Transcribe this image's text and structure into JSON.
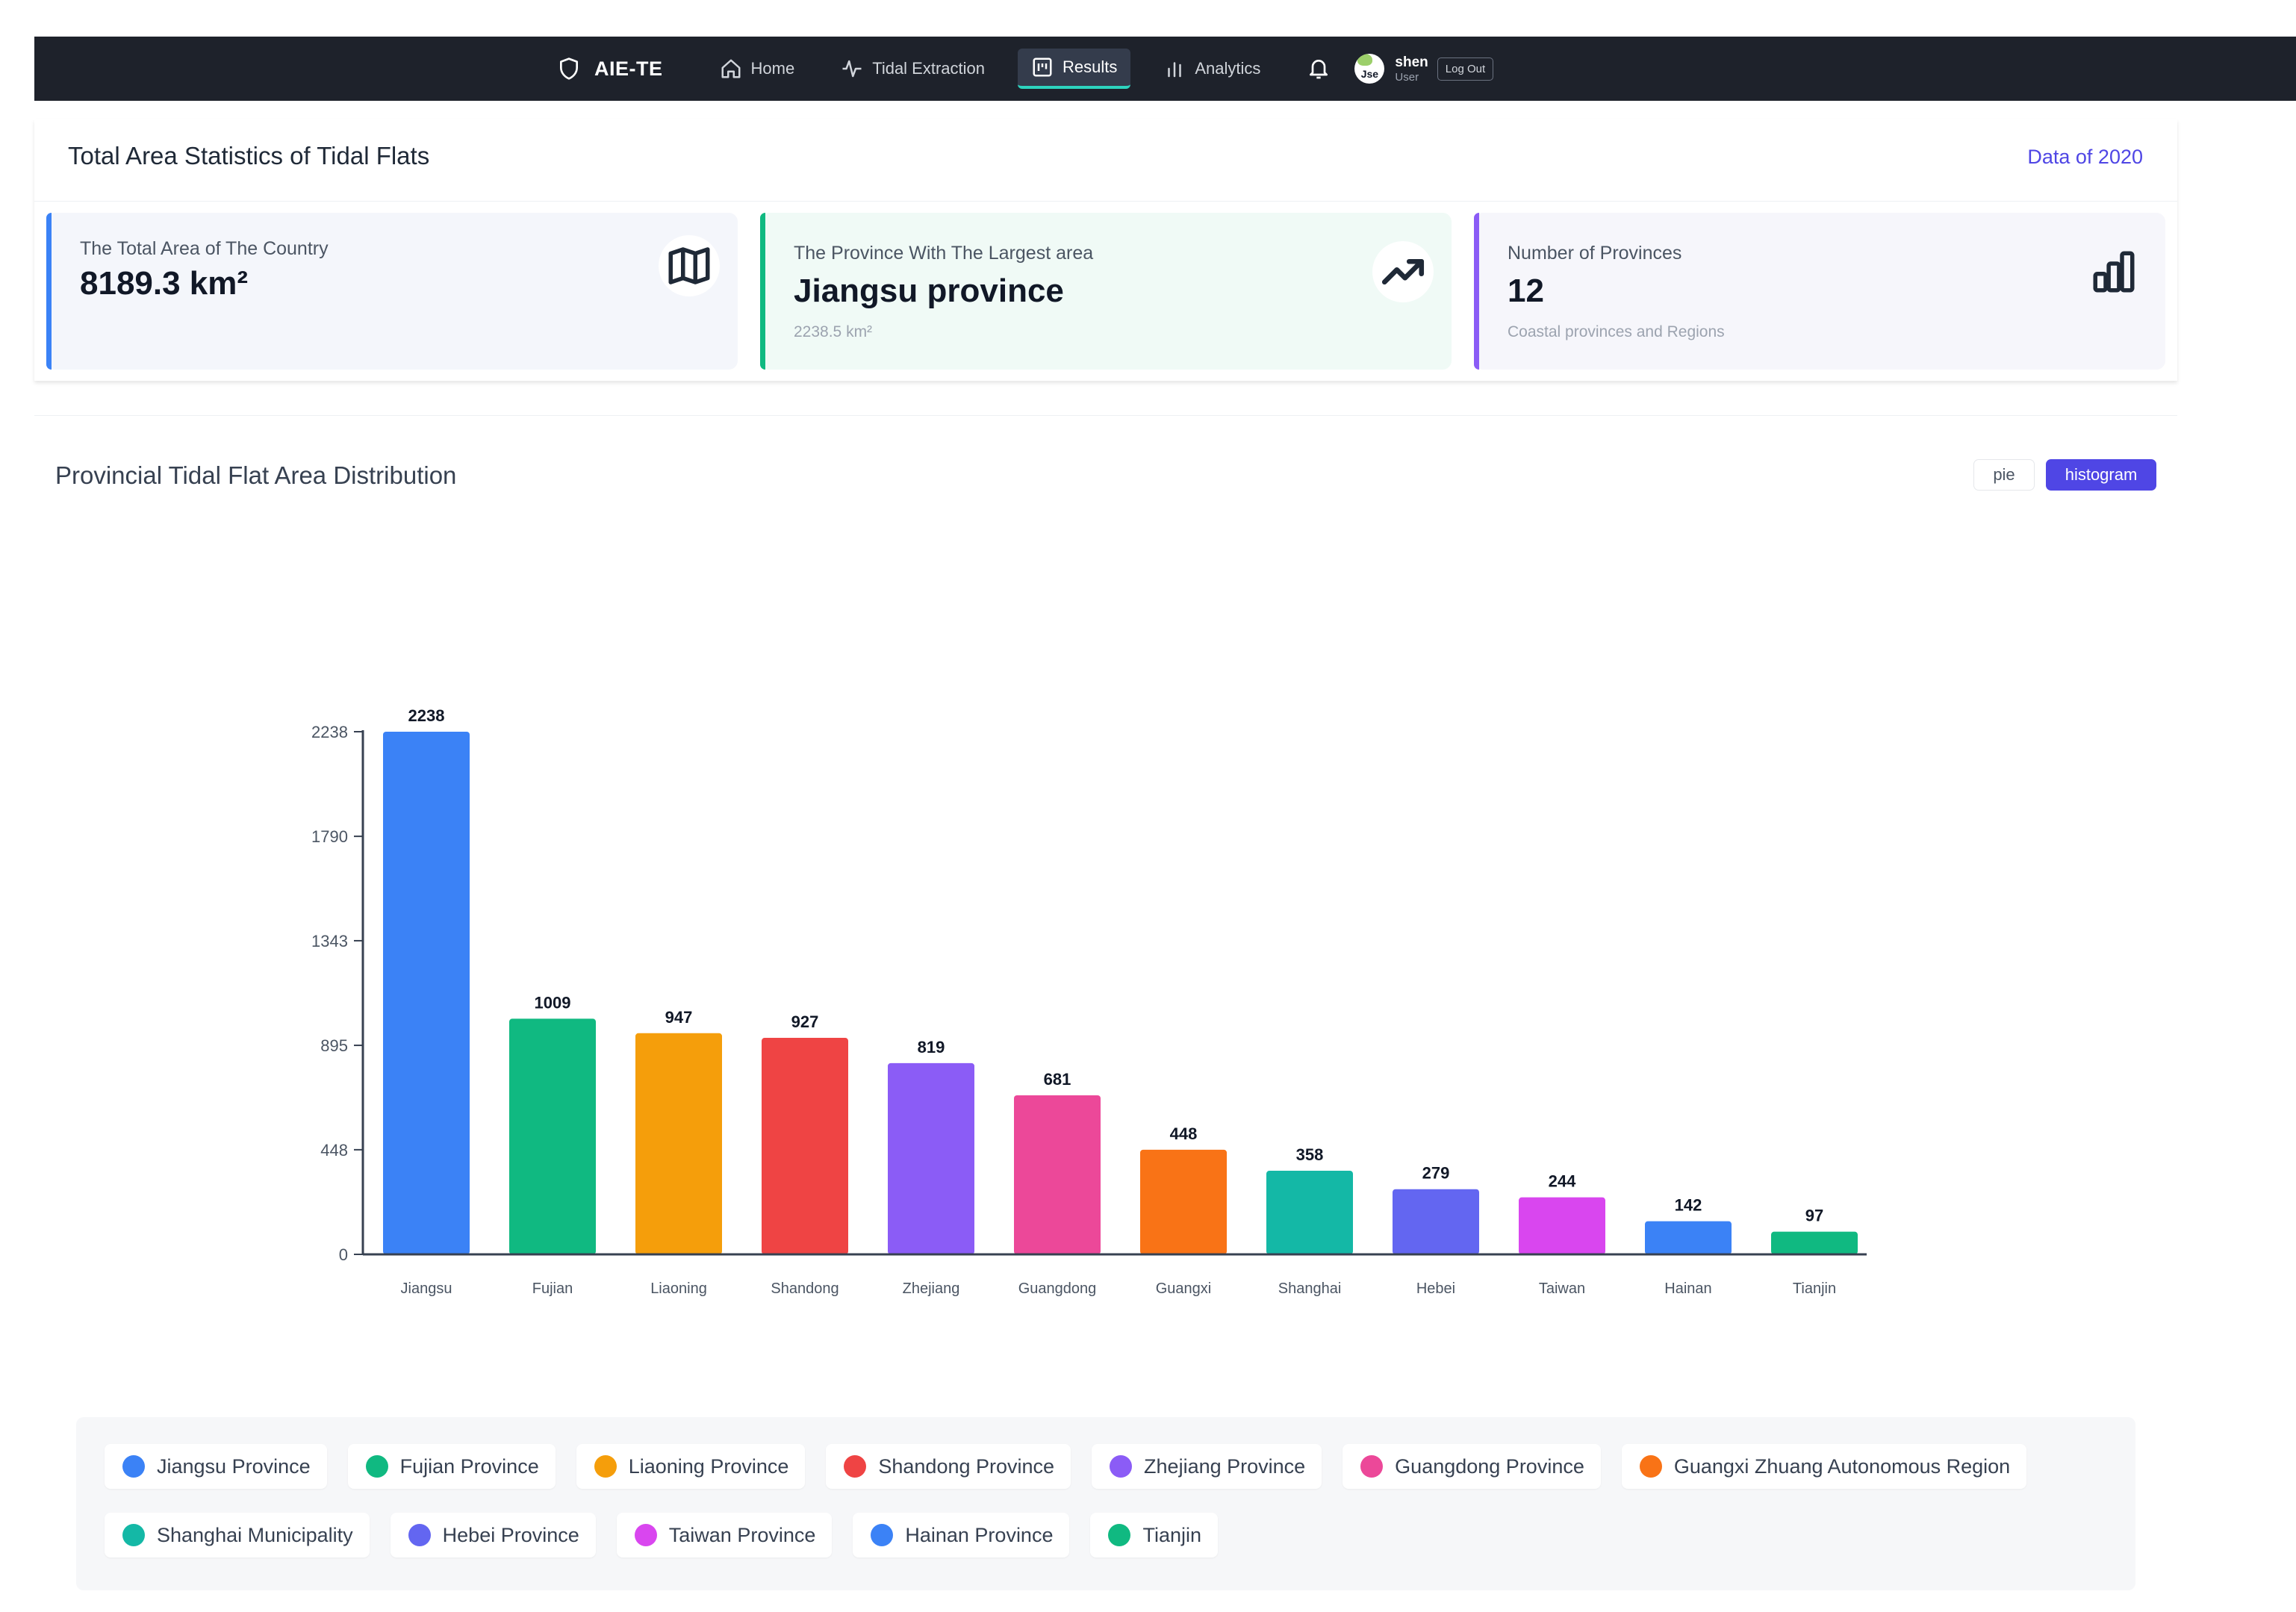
{
  "navbar": {
    "brand": "AIE-TE",
    "items": [
      {
        "label": "Home",
        "icon": "home-icon",
        "active": false
      },
      {
        "label": "Tidal Extraction",
        "icon": "pulse-icon",
        "active": false
      },
      {
        "label": "Results",
        "icon": "results-icon",
        "active": true
      },
      {
        "label": "Analytics",
        "icon": "bar-chart-icon",
        "active": false
      }
    ],
    "user": {
      "avatar_text": "Jse",
      "name": "shen",
      "role": "User",
      "logout": "Log Out"
    }
  },
  "stats": {
    "title": "Total Area Statistics of Tidal Flats",
    "year": "Data of 2020",
    "cards": [
      {
        "label": "The Total Area of The Country",
        "value": "8189.3 km²",
        "sub": "",
        "icon": "map-icon",
        "accent": "#3b82f6"
      },
      {
        "label": "The Province With The Largest area",
        "value": "Jiangsu province",
        "sub": "2238.5 km²",
        "icon": "trending-up-icon",
        "accent": "#10b981"
      },
      {
        "label": "Number of Provinces",
        "value": "12",
        "sub": "Coastal provinces and Regions",
        "icon": "bar-chart-icon",
        "accent": "#8b5cf6"
      }
    ]
  },
  "distribution": {
    "title": "Provincial Tidal Flat Area Distribution",
    "buttons": {
      "pie": "pie",
      "histogram": "histogram"
    }
  },
  "chart_data": {
    "type": "bar",
    "title": "",
    "xlabel": "",
    "ylabel": "",
    "ylim": [
      0,
      2238
    ],
    "yticks": [
      0,
      448,
      895,
      1343,
      1790,
      2238
    ],
    "categories": [
      "Jiangsu",
      "Fujian",
      "Liaoning",
      "Shandong",
      "Zhejiang",
      "Guangdong",
      "Guangxi",
      "Shanghai",
      "Hebei",
      "Taiwan",
      "Hainan",
      "Tianjin"
    ],
    "values": [
      2238,
      1009,
      947,
      927,
      819,
      681,
      448,
      358,
      279,
      244,
      142,
      97
    ],
    "colors": [
      "#3b82f6",
      "#10b981",
      "#f59e0b",
      "#ef4444",
      "#8b5cf6",
      "#ec4899",
      "#f97316",
      "#14b8a6",
      "#6366f1",
      "#d946ef",
      "#3b82f6",
      "#10b981"
    ],
    "grid": false,
    "legend": "bottom"
  },
  "legend": {
    "items": [
      {
        "label": "Jiangsu Province",
        "color": "#3b82f6"
      },
      {
        "label": "Fujian Province",
        "color": "#10b981"
      },
      {
        "label": "Liaoning Province",
        "color": "#f59e0b"
      },
      {
        "label": "Shandong Province",
        "color": "#ef4444"
      },
      {
        "label": "Zhejiang Province",
        "color": "#8b5cf6"
      },
      {
        "label": "Guangdong Province",
        "color": "#ec4899"
      },
      {
        "label": "Guangxi Zhuang Autonomous Region",
        "color": "#f97316"
      },
      {
        "label": "Shanghai Municipality",
        "color": "#14b8a6"
      },
      {
        "label": "Hebei Province",
        "color": "#6366f1"
      },
      {
        "label": "Taiwan Province",
        "color": "#d946ef"
      },
      {
        "label": "Hainan Province",
        "color": "#3b82f6"
      },
      {
        "label": "Tianjin",
        "color": "#10b981"
      }
    ]
  }
}
